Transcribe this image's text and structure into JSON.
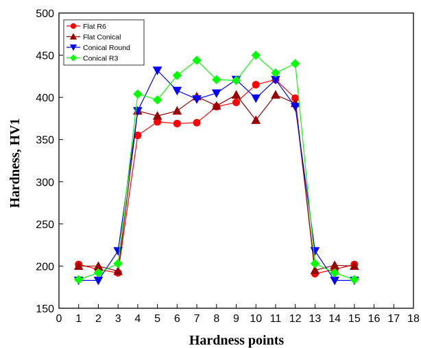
{
  "chart_data": {
    "type": "line",
    "title": "",
    "xlabel": "Hardness points",
    "ylabel": "Hardness, HV1",
    "xlim": [
      0,
      18
    ],
    "ylim": [
      150,
      500
    ],
    "xticks": [
      "0",
      "1",
      "2",
      "3",
      "4",
      "5",
      "6",
      "7",
      "8",
      "9",
      "10",
      "11",
      "12",
      "13",
      "14",
      "15",
      "16",
      "17",
      "18"
    ],
    "yticks": [
      "150",
      "200",
      "250",
      "300",
      "350",
      "400",
      "450",
      "500"
    ],
    "grid": false,
    "legend_position": "top-left",
    "x": [
      1,
      2,
      3,
      4,
      5,
      6,
      7,
      8,
      9,
      10,
      11,
      12,
      13,
      14,
      15
    ],
    "series": [
      {
        "name": "Flat R6",
        "color": "#ff0000",
        "marker": "circle",
        "values": [
          202,
          196,
          192,
          355,
          371,
          369,
          370,
          389,
          394,
          415,
          421,
          399,
          191,
          196,
          202
        ]
      },
      {
        "name": "Flat Conical",
        "color": "#990000",
        "marker": "triangle-up",
        "values": [
          200,
          200,
          194,
          384,
          378,
          384,
          401,
          390,
          403,
          373,
          403,
          393,
          195,
          201,
          200
        ]
      },
      {
        "name": "Conical Round",
        "color": "#0000ff",
        "marker": "triangle-down",
        "values": [
          183,
          183,
          218,
          384,
          432,
          408,
          398,
          405,
          421,
          399,
          421,
          389,
          218,
          183,
          183
        ]
      },
      {
        "name": "Conical R3",
        "color": "#00ff00",
        "marker": "diamond",
        "values": [
          184,
          192,
          203,
          404,
          397,
          426,
          444,
          421,
          420,
          450,
          429,
          440,
          203,
          192,
          184
        ]
      }
    ]
  }
}
